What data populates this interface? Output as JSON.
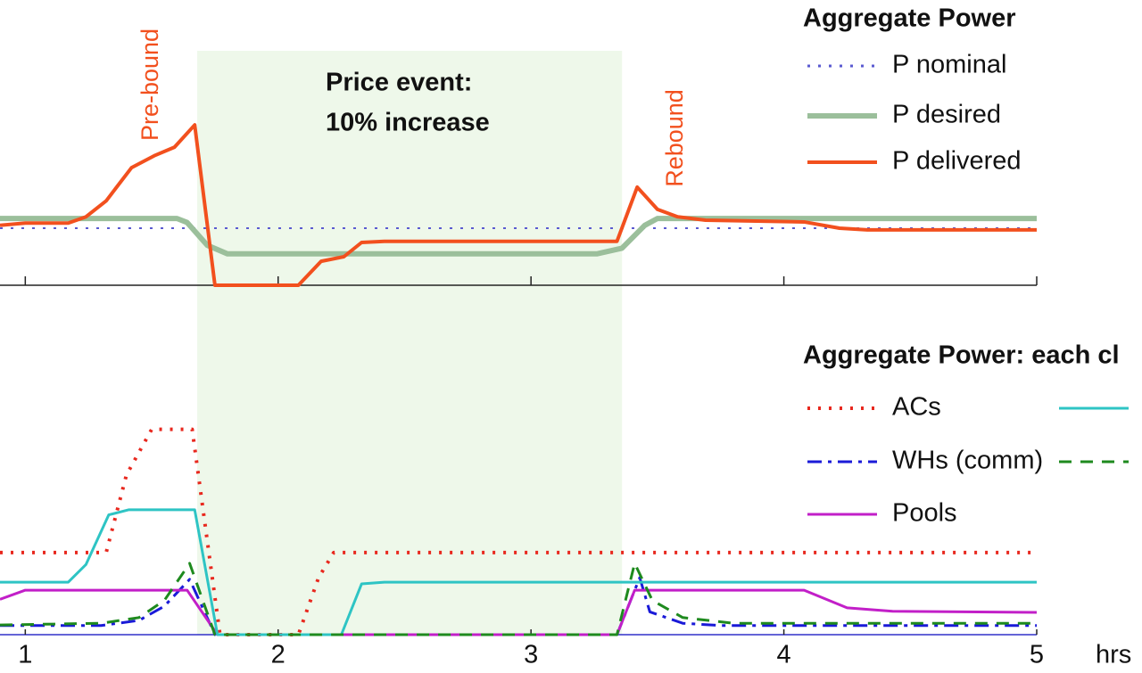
{
  "chart_data": [
    {
      "type": "line",
      "title": "Aggregate Power",
      "annotations": [
        "Price event:",
        "10% increase",
        "Pre-bound",
        "Rebound"
      ],
      "shade": [
        1.68,
        3.36
      ],
      "shade_color": "#eef8ea",
      "xlim": [
        0.9,
        5.0
      ],
      "xticks": [
        1,
        2,
        3,
        4,
        5
      ],
      "ylim": [
        0,
        5
      ],
      "series": [
        {
          "name": "P nominal",
          "color": "#5a5ad0",
          "linestyle": "dotted",
          "width": 2,
          "x": [
            0.9,
            5.0
          ],
          "values": [
            1.0,
            1.0
          ]
        },
        {
          "name": "P desired",
          "color": "#9bbf9b",
          "linestyle": "solid",
          "width": 6,
          "x": [
            0.9,
            1.6,
            1.64,
            1.72,
            1.8,
            3.26,
            3.36,
            3.45,
            3.5,
            5.0
          ],
          "values": [
            1.17,
            1.17,
            1.1,
            0.7,
            0.55,
            0.55,
            0.65,
            1.05,
            1.17,
            1.17
          ]
        },
        {
          "name": "P delivered",
          "color": "#f2501e",
          "linestyle": "solid",
          "width": 4,
          "x": [
            0.9,
            1.0,
            1.17,
            1.24,
            1.32,
            1.42,
            1.51,
            1.59,
            1.67,
            1.75,
            2.08,
            2.17,
            2.26,
            2.33,
            2.42,
            3.34,
            3.42,
            3.5,
            3.58,
            3.69,
            4.08,
            4.22,
            4.33,
            5.0
          ],
          "values": [
            1.05,
            1.09,
            1.09,
            1.2,
            1.48,
            2.06,
            2.27,
            2.42,
            2.81,
            0,
            0,
            0.42,
            0.5,
            0.75,
            0.77,
            0.77,
            1.72,
            1.33,
            1.2,
            1.14,
            1.11,
            1.0,
            0.97,
            0.97
          ]
        }
      ]
    },
    {
      "type": "line",
      "title": "Aggregate Power: each cl",
      "xlabel": "hrs",
      "xlim": [
        0.9,
        5.0
      ],
      "xticks": [
        1,
        2,
        3,
        4,
        5
      ],
      "ylim": [
        0,
        5
      ],
      "series": [
        {
          "name": "ACs",
          "color": "#e8281e",
          "linestyle": "dotted",
          "width": 4,
          "x": [
            0.9,
            1.32,
            1.4,
            1.5,
            1.66,
            1.77,
            2.08,
            2.16,
            2.22,
            5.0
          ],
          "values": [
            1.44,
            1.44,
            2.8,
            3.6,
            3.6,
            0,
            0,
            1.0,
            1.44,
            1.44
          ]
        },
        {
          "name": "WHs (comm)",
          "color": "#1a1ad8",
          "linestyle": "dashdot",
          "width": 3,
          "x": [
            0.9,
            1.3,
            1.45,
            1.55,
            1.65,
            1.75,
            3.34,
            3.43,
            3.47,
            3.6,
            3.75,
            5.0
          ],
          "values": [
            0.16,
            0.16,
            0.25,
            0.5,
            0.97,
            0,
            0,
            1.0,
            0.4,
            0.2,
            0.16,
            0.16
          ]
        },
        {
          "name": "Pools",
          "color": "#c21fc8",
          "linestyle": "solid",
          "width": 3,
          "x": [
            0.9,
            1.0,
            1.64,
            1.76,
            3.34,
            3.41,
            4.08,
            4.25,
            4.43,
            5.0
          ],
          "values": [
            0.62,
            0.78,
            0.78,
            0,
            0,
            0.78,
            0.78,
            0.47,
            0.41,
            0.39
          ]
        },
        {
          "color": "#2ec4c4",
          "linestyle": "solid",
          "width": 3,
          "x": [
            0.9,
            1.17,
            1.24,
            1.33,
            1.41,
            1.67,
            1.76,
            2.25,
            2.33,
            2.42,
            5.0
          ],
          "values": [
            0.92,
            0.92,
            1.23,
            2.1,
            2.19,
            2.19,
            0,
            0,
            0.89,
            0.92,
            0.92
          ]
        },
        {
          "color": "#1e8a1e",
          "linestyle": "dashed",
          "width": 3,
          "x": [
            0.9,
            1.3,
            1.45,
            1.55,
            1.65,
            1.75,
            3.34,
            3.41,
            3.48,
            3.6,
            3.8,
            5.0
          ],
          "values": [
            0.17,
            0.2,
            0.3,
            0.6,
            1.25,
            0,
            0,
            1.25,
            0.6,
            0.3,
            0.2,
            0.2
          ]
        }
      ]
    }
  ]
}
